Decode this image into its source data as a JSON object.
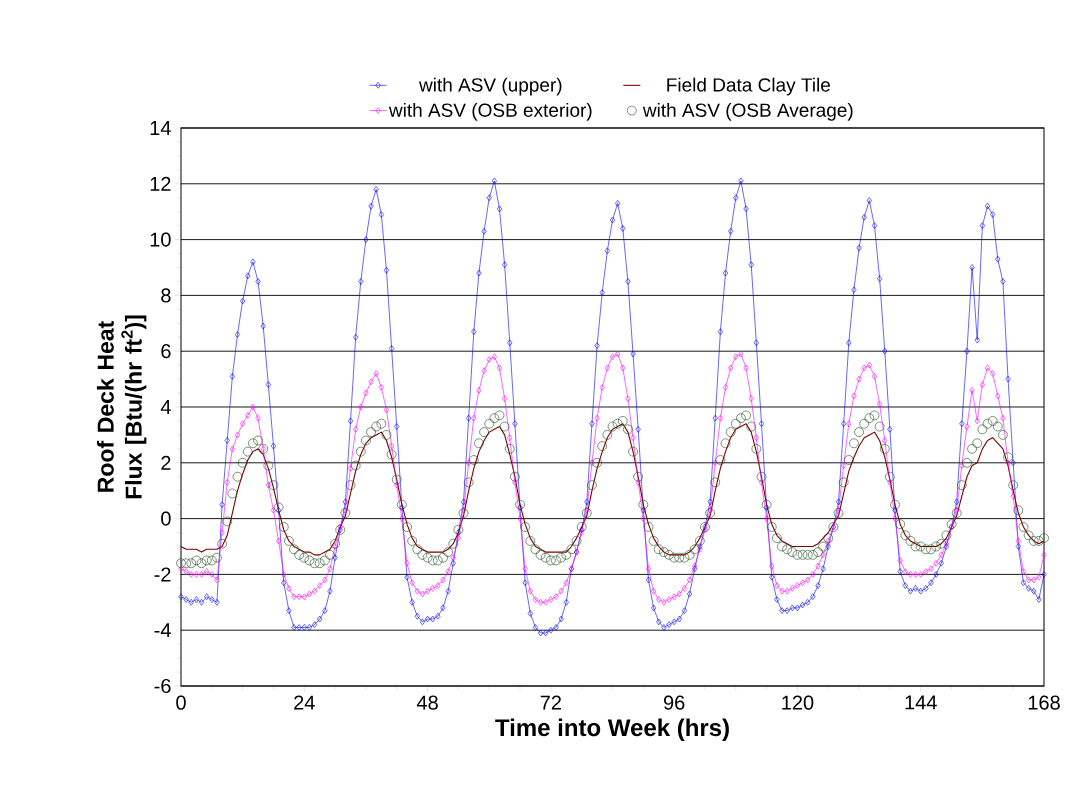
{
  "chart_data": {
    "type": "line",
    "xlabel": "Time into Week (hrs)",
    "ylabel": "Roof Deck Heat Flux [Btu/(hr ft$^{2}$)]",
    "xlim": [
      0,
      168
    ],
    "xticks": [
      0,
      24,
      48,
      72,
      96,
      120,
      144,
      168
    ],
    "ylim": [
      -6,
      14
    ],
    "yticks": [
      -6,
      -4,
      -2,
      0,
      2,
      4,
      6,
      8,
      10,
      12,
      14
    ],
    "grid": "y",
    "legend": "top",
    "x": [
      0,
      1,
      2,
      3,
      4,
      5,
      6,
      7,
      8,
      9,
      10,
      11,
      12,
      13,
      14,
      15,
      16,
      17,
      18,
      19,
      20,
      21,
      22,
      23,
      24,
      25,
      26,
      27,
      28,
      29,
      30,
      31,
      32,
      33,
      34,
      35,
      36,
      37,
      38,
      39,
      40,
      41,
      42,
      43,
      44,
      45,
      46,
      47,
      48,
      49,
      50,
      51,
      52,
      53,
      54,
      55,
      56,
      57,
      58,
      59,
      60,
      61,
      62,
      63,
      64,
      65,
      66,
      67,
      68,
      69,
      70,
      71,
      72,
      73,
      74,
      75,
      76,
      77,
      78,
      79,
      80,
      81,
      82,
      83,
      84,
      85,
      86,
      87,
      88,
      89,
      90,
      91,
      92,
      93,
      94,
      95,
      96,
      97,
      98,
      99,
      100,
      101,
      102,
      103,
      104,
      105,
      106,
      107,
      108,
      109,
      110,
      111,
      112,
      113,
      114,
      115,
      116,
      117,
      118,
      119,
      120,
      121,
      122,
      123,
      124,
      125,
      126,
      127,
      128,
      129,
      130,
      131,
      132,
      133,
      134,
      135,
      136,
      137,
      138,
      139,
      140,
      141,
      142,
      143,
      144,
      145,
      146,
      147,
      148,
      149,
      150,
      151,
      152,
      153,
      154,
      155,
      156,
      157,
      158,
      159,
      160,
      161,
      162,
      163,
      164,
      165,
      166,
      167,
      168
    ],
    "series": [
      {
        "name": "with ASV (upper)",
        "color": "#0000ff",
        "marker": "diamond",
        "values": [
          -2.8,
          -2.9,
          -3.0,
          -2.9,
          -3.0,
          -2.8,
          -2.9,
          -3.0,
          0.5,
          2.8,
          5.1,
          6.6,
          7.8,
          8.7,
          9.2,
          8.5,
          6.9,
          4.8,
          2.6,
          0.3,
          -2.3,
          -3.3,
          -3.9,
          -3.9,
          -3.9,
          -3.9,
          -3.8,
          -3.6,
          -3.3,
          -2.6,
          -1.4,
          -0.4,
          0.6,
          3.5,
          6.5,
          8.5,
          10.0,
          11.2,
          11.8,
          10.9,
          8.9,
          6.1,
          3.3,
          0.4,
          -2.1,
          -3.0,
          -3.5,
          -3.7,
          -3.6,
          -3.6,
          -3.5,
          -3.2,
          -2.6,
          -1.6,
          -0.5,
          0.6,
          3.6,
          6.7,
          8.8,
          10.3,
          11.5,
          12.1,
          11.1,
          9.1,
          6.3,
          3.4,
          0.4,
          -2.3,
          -3.4,
          -3.9,
          -4.1,
          -4.1,
          -4.0,
          -3.9,
          -3.6,
          -3.0,
          -1.8,
          -1.2,
          -0.4,
          0.6,
          3.4,
          6.2,
          8.1,
          9.6,
          10.7,
          11.3,
          10.4,
          8.5,
          5.9,
          3.2,
          0.3,
          -2.2,
          -3.2,
          -3.7,
          -3.9,
          -3.8,
          -3.7,
          -3.6,
          -3.3,
          -2.7,
          -1.8,
          -1.0,
          -0.3,
          0.6,
          3.6,
          6.7,
          8.8,
          10.3,
          11.5,
          12.1,
          11.1,
          9.1,
          6.3,
          3.4,
          0.4,
          -2.1,
          -2.9,
          -3.3,
          -3.3,
          -3.2,
          -3.2,
          -3.1,
          -3.0,
          -2.8,
          -2.4,
          -1.8,
          -1.0,
          -0.3,
          0.6,
          3.4,
          6.3,
          8.2,
          9.7,
          10.8,
          11.4,
          10.5,
          8.6,
          6.0,
          3.2,
          0.3,
          -1.9,
          -2.4,
          -2.6,
          -2.5,
          -2.6,
          -2.5,
          -2.3,
          -2.0,
          -1.6,
          -1.0,
          -0.3,
          0.6,
          3.4,
          6.0,
          9.0,
          6.4,
          10.5,
          11.2,
          10.9,
          9.3,
          8.5,
          5.0,
          2.0,
          -1.0,
          -2.3,
          -2.5,
          -2.6,
          -2.9,
          -2.0
        ]
      },
      {
        "name": "Field Data Clay Tile",
        "color": "#800000",
        "marker": "none",
        "values": [
          -1.0,
          -1.1,
          -1.1,
          -1.1,
          -1.2,
          -1.1,
          -1.1,
          -1.1,
          -1.0,
          -0.6,
          0.2,
          1.0,
          1.6,
          2.1,
          2.4,
          2.5,
          2.3,
          1.8,
          1.1,
          0.3,
          -0.4,
          -0.8,
          -1.0,
          -1.1,
          -1.2,
          -1.2,
          -1.3,
          -1.3,
          -1.2,
          -1.1,
          -0.8,
          -0.3,
          0.1,
          0.9,
          1.7,
          2.3,
          2.7,
          2.9,
          3.0,
          3.1,
          2.8,
          2.2,
          1.4,
          0.5,
          -0.2,
          -0.7,
          -1.0,
          -1.1,
          -1.2,
          -1.2,
          -1.2,
          -1.2,
          -1.1,
          -0.9,
          -0.5,
          0.1,
          1.0,
          1.8,
          2.4,
          2.8,
          3.1,
          3.2,
          3.3,
          3.0,
          2.3,
          1.5,
          0.5,
          -0.2,
          -0.7,
          -1.0,
          -1.1,
          -1.2,
          -1.2,
          -1.2,
          -1.2,
          -1.2,
          -1.0,
          -0.7,
          -0.3,
          0.1,
          1.0,
          1.8,
          2.4,
          2.9,
          3.2,
          3.3,
          3.4,
          3.1,
          2.4,
          1.5,
          0.5,
          -0.2,
          -0.7,
          -1.0,
          -1.2,
          -1.3,
          -1.3,
          -1.3,
          -1.3,
          -1.2,
          -1.0,
          -0.7,
          -0.3,
          0.1,
          1.0,
          1.8,
          2.4,
          2.9,
          3.2,
          3.3,
          3.4,
          3.1,
          2.4,
          1.5,
          0.5,
          -0.2,
          -0.6,
          -0.8,
          -0.9,
          -1.0,
          -1.0,
          -1.0,
          -1.0,
          -1.0,
          -0.9,
          -0.7,
          -0.5,
          -0.2,
          0.1,
          0.9,
          1.7,
          2.2,
          2.6,
          2.9,
          3.0,
          3.1,
          2.8,
          2.2,
          1.4,
          0.5,
          -0.2,
          -0.6,
          -0.8,
          -0.9,
          -1.0,
          -1.0,
          -1.0,
          -1.0,
          -0.9,
          -0.7,
          -0.3,
          0.1,
          0.8,
          1.5,
          1.9,
          2.0,
          2.5,
          2.8,
          2.9,
          2.7,
          2.5,
          1.9,
          1.0,
          0.2,
          -0.3,
          -0.6,
          -0.8,
          -0.9,
          -0.8
        ]
      },
      {
        "name": "with ASV (OSB exterior)",
        "color": "#ff00ff",
        "marker": "diamond",
        "values": [
          -1.8,
          -1.9,
          -2.0,
          -2.0,
          -2.0,
          -1.9,
          -2.0,
          -2.2,
          -0.5,
          1.3,
          2.5,
          3.0,
          3.4,
          3.7,
          4.0,
          3.6,
          2.5,
          1.2,
          0.3,
          -0.8,
          -2.0,
          -2.5,
          -2.8,
          -2.8,
          -2.8,
          -2.7,
          -2.6,
          -2.4,
          -2.2,
          -1.8,
          -1.0,
          -0.3,
          0.3,
          1.8,
          3.2,
          4.0,
          4.5,
          4.9,
          5.2,
          4.7,
          3.9,
          2.6,
          1.2,
          0.0,
          -1.6,
          -2.3,
          -2.6,
          -2.7,
          -2.6,
          -2.5,
          -2.4,
          -2.2,
          -1.9,
          -1.4,
          -0.7,
          0.3,
          2.0,
          3.6,
          4.6,
          5.3,
          5.7,
          5.8,
          5.4,
          4.3,
          2.9,
          1.3,
          0.0,
          -1.8,
          -2.6,
          -2.9,
          -3.0,
          -3.0,
          -2.9,
          -2.8,
          -2.6,
          -2.3,
          -1.8,
          -1.2,
          -0.5,
          0.3,
          2.0,
          3.6,
          4.7,
          5.4,
          5.8,
          5.9,
          5.4,
          4.3,
          2.9,
          1.3,
          0.0,
          -1.8,
          -2.6,
          -2.9,
          -3.0,
          -2.9,
          -2.8,
          -2.7,
          -2.5,
          -2.2,
          -1.7,
          -1.1,
          -0.4,
          0.3,
          2.0,
          3.6,
          4.7,
          5.4,
          5.8,
          5.9,
          5.4,
          4.3,
          2.9,
          1.3,
          0.0,
          -1.7,
          -2.4,
          -2.6,
          -2.6,
          -2.5,
          -2.4,
          -2.3,
          -2.2,
          -2.0,
          -1.7,
          -1.3,
          -0.8,
          -0.3,
          0.3,
          1.9,
          3.4,
          4.4,
          5.0,
          5.4,
          5.5,
          5.1,
          4.1,
          2.8,
          1.3,
          0.0,
          -1.5,
          -1.9,
          -2.0,
          -2.0,
          -2.0,
          -1.9,
          -1.8,
          -1.6,
          -1.3,
          -0.9,
          -0.3,
          0.3,
          1.9,
          3.3,
          4.6,
          3.5,
          4.8,
          5.4,
          5.2,
          4.4,
          3.6,
          2.0,
          0.8,
          -0.8,
          -1.9,
          -2.2,
          -2.2,
          -2.1,
          -1.3
        ]
      },
      {
        "name": "with ASV (OSB Average)",
        "color": "#1e4d1e",
        "type": "scatter",
        "marker": "circle",
        "values": [
          -1.6,
          -1.6,
          -1.6,
          -1.5,
          -1.6,
          -1.5,
          -1.5,
          -1.4,
          -0.9,
          -0.1,
          0.9,
          1.5,
          2.0,
          2.4,
          2.7,
          2.8,
          2.5,
          1.9,
          1.2,
          0.4,
          -0.3,
          -0.8,
          -1.1,
          -1.3,
          -1.4,
          -1.5,
          -1.6,
          -1.6,
          -1.5,
          -1.3,
          -0.9,
          -0.4,
          0.2,
          1.2,
          1.9,
          2.4,
          2.8,
          3.1,
          3.3,
          3.4,
          3.0,
          2.3,
          1.4,
          0.5,
          -0.3,
          -0.8,
          -1.1,
          -1.3,
          -1.4,
          -1.5,
          -1.5,
          -1.4,
          -1.2,
          -0.9,
          -0.4,
          0.2,
          1.3,
          2.1,
          2.7,
          3.1,
          3.4,
          3.6,
          3.7,
          3.3,
          2.5,
          1.5,
          0.5,
          -0.3,
          -0.8,
          -1.1,
          -1.3,
          -1.4,
          -1.5,
          -1.5,
          -1.4,
          -1.3,
          -1.1,
          -0.8,
          -0.3,
          0.2,
          1.2,
          2.0,
          2.6,
          3.0,
          3.3,
          3.4,
          3.5,
          3.2,
          2.4,
          1.5,
          0.5,
          -0.3,
          -0.8,
          -1.1,
          -1.2,
          -1.3,
          -1.4,
          -1.4,
          -1.4,
          -1.3,
          -1.1,
          -0.8,
          -0.3,
          0.2,
          1.3,
          2.1,
          2.7,
          3.1,
          3.4,
          3.6,
          3.7,
          3.3,
          2.5,
          1.5,
          0.5,
          -0.3,
          -0.7,
          -1.0,
          -1.1,
          -1.2,
          -1.3,
          -1.3,
          -1.3,
          -1.3,
          -1.2,
          -1.0,
          -0.7,
          -0.3,
          0.2,
          1.3,
          2.1,
          2.7,
          3.1,
          3.4,
          3.6,
          3.7,
          3.3,
          2.5,
          1.5,
          0.5,
          -0.2,
          -0.6,
          -0.8,
          -1.0,
          -1.0,
          -1.1,
          -1.1,
          -1.0,
          -0.9,
          -0.6,
          -0.2,
          0.2,
          1.2,
          2.0,
          2.5,
          2.7,
          3.2,
          3.4,
          3.5,
          3.3,
          3.0,
          2.2,
          1.2,
          0.3,
          -0.3,
          -0.6,
          -0.8,
          -0.8,
          -0.7
        ]
      }
    ]
  }
}
